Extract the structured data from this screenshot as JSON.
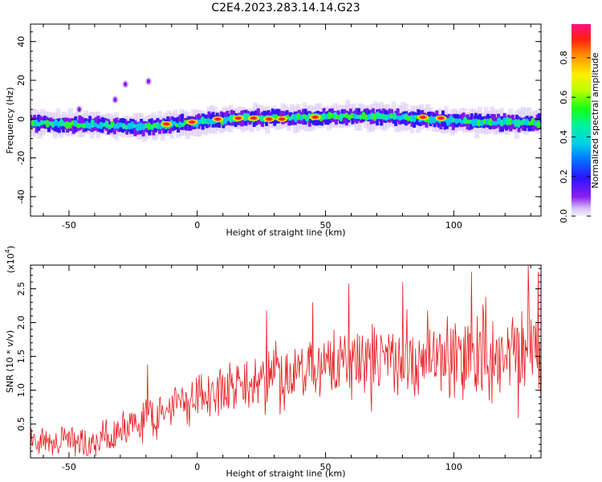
{
  "title": "C2E4.2023.283.14.14.G23",
  "chart_data": [
    {
      "type": "heatmap",
      "name": "spectrogram",
      "xlabel": "Height of straight line (km)",
      "ylabel": "Frequency (Hz)",
      "xlim": [
        -65,
        134
      ],
      "ylim": [
        -50,
        49
      ],
      "xticks": [
        -50,
        0,
        50,
        100
      ],
      "yticks": [
        40,
        20,
        0,
        -20,
        -40
      ],
      "colorbar": {
        "label": "Normalized spectral amplitude",
        "range": [
          0,
          0.97
        ],
        "ticks": [
          0.0,
          0.2,
          0.4,
          0.6,
          0.8
        ]
      },
      "band": {
        "description": "energy concentrated near 0 Hz drifting from about -3 Hz to +2 Hz with height",
        "center_points": [
          [
            -65,
            -2
          ],
          [
            -40,
            -3
          ],
          [
            -20,
            -4
          ],
          [
            0,
            -1.5
          ],
          [
            20,
            0.5
          ],
          [
            40,
            1
          ],
          [
            60,
            1.5
          ],
          [
            80,
            1
          ],
          [
            100,
            -1
          ],
          [
            134,
            -2
          ]
        ],
        "width_hz": 6,
        "peak_points": [
          [
            -12,
            -2.5
          ],
          [
            -2,
            -1.5
          ],
          [
            8,
            0
          ],
          [
            16,
            0.5
          ],
          [
            22,
            0.5
          ],
          [
            28,
            0
          ],
          [
            33,
            0
          ],
          [
            46,
            1
          ],
          [
            88,
            1
          ],
          [
            95,
            0.5
          ]
        ],
        "outliers": [
          [
            -28,
            18
          ],
          [
            -19,
            19.5
          ],
          [
            -32,
            10
          ],
          [
            -46,
            5
          ]
        ]
      }
    },
    {
      "type": "line",
      "name": "snr",
      "xlabel": "Height of straight line (km)",
      "ylabel": "SNR (10 * v/v)",
      "multiplier_label": "(x10",
      "multiplier_exp": "4",
      "xlim": [
        -65,
        134
      ],
      "ylim": [
        0,
        2.85
      ],
      "xticks": [
        -50,
        0,
        50,
        100
      ],
      "yticks": [
        0.5,
        1.0,
        1.5,
        2.0,
        2.5
      ],
      "color": "#e8191c",
      "trend": [
        [
          -65,
          0.25
        ],
        [
          -40,
          0.25
        ],
        [
          -20,
          0.55
        ],
        [
          0,
          0.85
        ],
        [
          25,
          1.15
        ],
        [
          50,
          1.35
        ],
        [
          75,
          1.45
        ],
        [
          100,
          1.5
        ],
        [
          134,
          1.55
        ]
      ],
      "noise_amplitude_low": 0.15,
      "noise_amplitude_high": 0.6,
      "peaks": [
        [
          -19.5,
          1.38
        ],
        [
          27,
          2.18
        ],
        [
          45,
          2.3
        ],
        [
          59,
          2.58
        ],
        [
          80,
          2.6
        ],
        [
          107,
          2.75
        ],
        [
          129,
          2.85
        ],
        [
          133,
          2.75
        ]
      ]
    }
  ]
}
